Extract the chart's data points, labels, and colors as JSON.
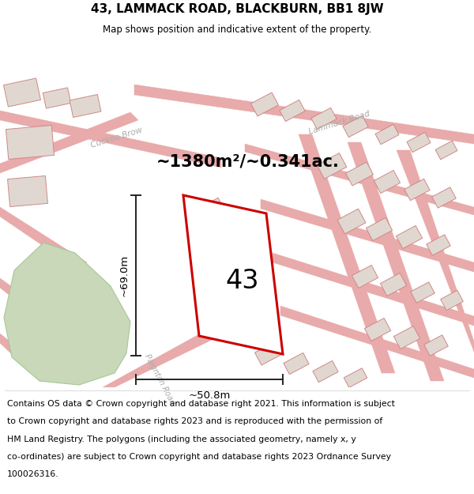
{
  "title_line1": "43, LAMMACK ROAD, BLACKBURN, BB1 8JW",
  "title_line2": "Map shows position and indicative extent of the property.",
  "footer_lines": [
    "Contains OS data © Crown copyright and database right 2021. This information is subject",
    "to Crown copyright and database rights 2023 and is reproduced with the permission of",
    "HM Land Registry. The polygons (including the associated geometry, namely x, y",
    "co-ordinates) are subject to Crown copyright and database rights 2023 Ordnance Survey",
    "100026316."
  ],
  "area_label": "~1380m²/~0.341ac.",
  "number_label": "43",
  "dim_height_label": "~69.0m",
  "dim_width_label": "~50.8m",
  "road_label_cuckoo": "Cuckoo Brow",
  "road_label_lammack": "Lammack Road",
  "road_label_paignton": "Paignton Road",
  "map_bg": "#f9f6f3",
  "road_line_color": "#e8aaaa",
  "building_face_color": "#e0d8d0",
  "building_edge_color": "#d08888",
  "green_color": "#c8d8b8",
  "plot_color": "#cc0000",
  "dim_color": "#222222",
  "road_label_color": "#aaaaaa",
  "title_fontsize": 11,
  "footer_fontsize": 7.8
}
